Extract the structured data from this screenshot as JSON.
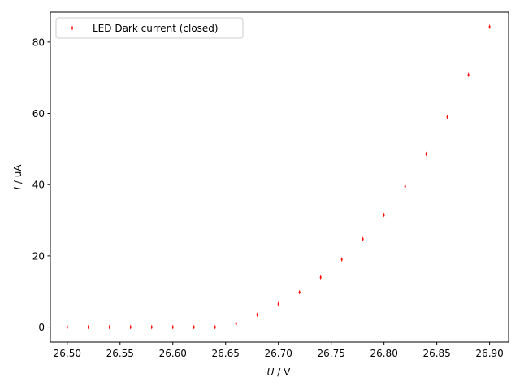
{
  "chart_data": {
    "type": "scatter",
    "title": "",
    "xlabel": "U / V",
    "ylabel": "I / uA",
    "xlabel_var": "U",
    "xlabel_unit": " / V",
    "ylabel_var": "I",
    "ylabel_unit": " / uA",
    "xlim": [
      26.484,
      26.918
    ],
    "ylim": [
      -4.2,
      88.4
    ],
    "xticks": [
      26.5,
      26.55,
      26.6,
      26.65,
      26.7,
      26.75,
      26.8,
      26.85,
      26.9
    ],
    "xtick_labels": [
      "26.50",
      "26.55",
      "26.60",
      "26.65",
      "26.70",
      "26.75",
      "26.80",
      "26.85",
      "26.90"
    ],
    "yticks": [
      0,
      20,
      40,
      60,
      80
    ],
    "ytick_labels": [
      "0",
      "20",
      "40",
      "60",
      "80"
    ],
    "grid": false,
    "legend_position": "top-left",
    "series": [
      {
        "name": "LED Dark current (closed)",
        "color": "#ff0000",
        "marker": "thin-diamond",
        "x": [
          26.5,
          26.52,
          26.54,
          26.56,
          26.58,
          26.6,
          26.62,
          26.64,
          26.66,
          26.68,
          26.7,
          26.72,
          26.74,
          26.76,
          26.78,
          26.8,
          26.82,
          26.84,
          26.86,
          26.88,
          26.9
        ],
        "y": [
          0,
          0,
          0,
          0,
          0,
          0,
          0,
          0,
          1.0,
          3.5,
          6.5,
          9.8,
          14.0,
          19.0,
          24.7,
          31.5,
          39.5,
          48.6,
          59.0,
          70.8,
          84.3
        ]
      }
    ]
  }
}
